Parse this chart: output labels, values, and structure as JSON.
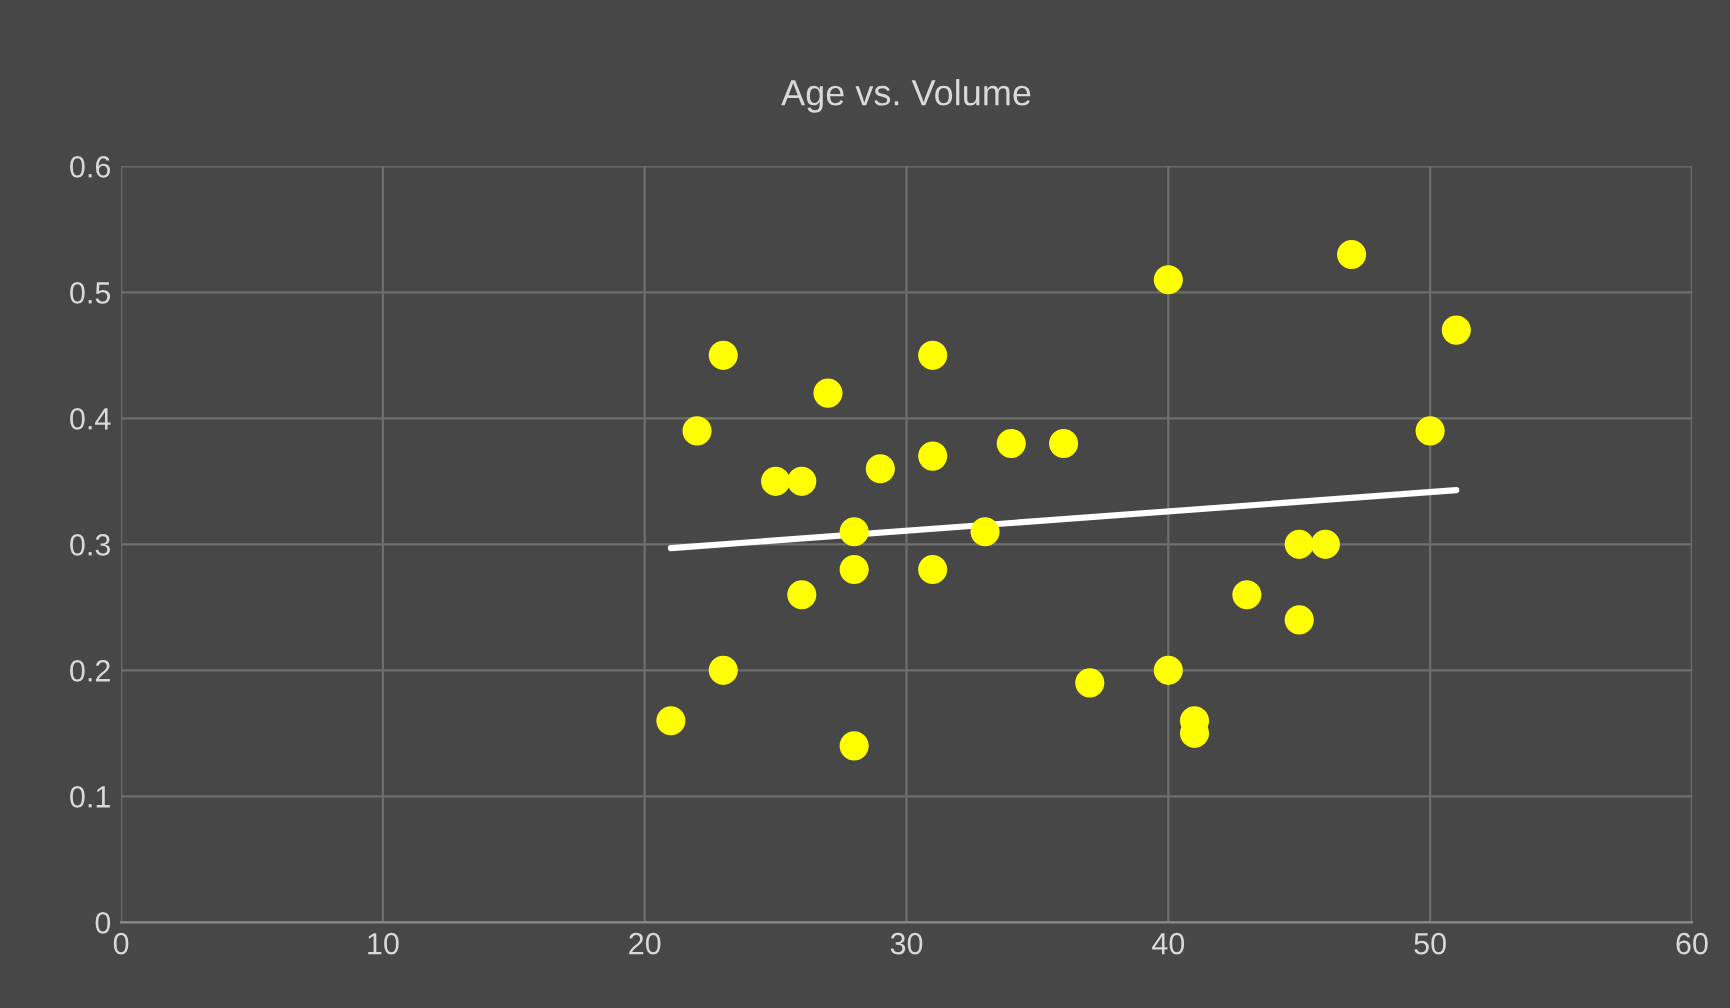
{
  "chart_data": {
    "type": "scatter",
    "title": "Age vs. Volume",
    "series": [
      {
        "color": "#ffff00",
        "marker": "circle",
        "x": [
          23,
          31,
          27,
          22,
          25,
          26,
          29,
          31,
          34,
          36,
          28,
          33,
          28,
          31,
          26,
          23,
          21,
          28,
          37,
          40,
          47,
          51,
          50,
          45,
          46,
          43,
          45,
          40,
          41,
          41
        ],
        "values": [
          0.45,
          0.45,
          0.42,
          0.39,
          0.35,
          0.35,
          0.36,
          0.37,
          0.38,
          0.38,
          0.31,
          0.31,
          0.28,
          0.28,
          0.26,
          0.2,
          0.16,
          0.14,
          0.19,
          0.51,
          0.53,
          0.47,
          0.39,
          0.3,
          0.3,
          0.26,
          0.24,
          0.2,
          0.16,
          0.15
        ]
      },
      {
        "type": "line",
        "color": "#ffffff",
        "marker": "none",
        "line_style": "solid",
        "x": [
          21,
          51
        ],
        "values": [
          0.297,
          0.343
        ]
      }
    ],
    "xlim": [
      0,
      60
    ],
    "xticks": [
      0,
      10,
      20,
      30,
      40,
      50,
      60
    ],
    "ylim": [
      0,
      0.6
    ],
    "yticks": [
      0,
      0.1,
      0.2,
      0.3,
      0.4,
      0.5,
      0.6
    ],
    "grid": true,
    "legend": false
  }
}
